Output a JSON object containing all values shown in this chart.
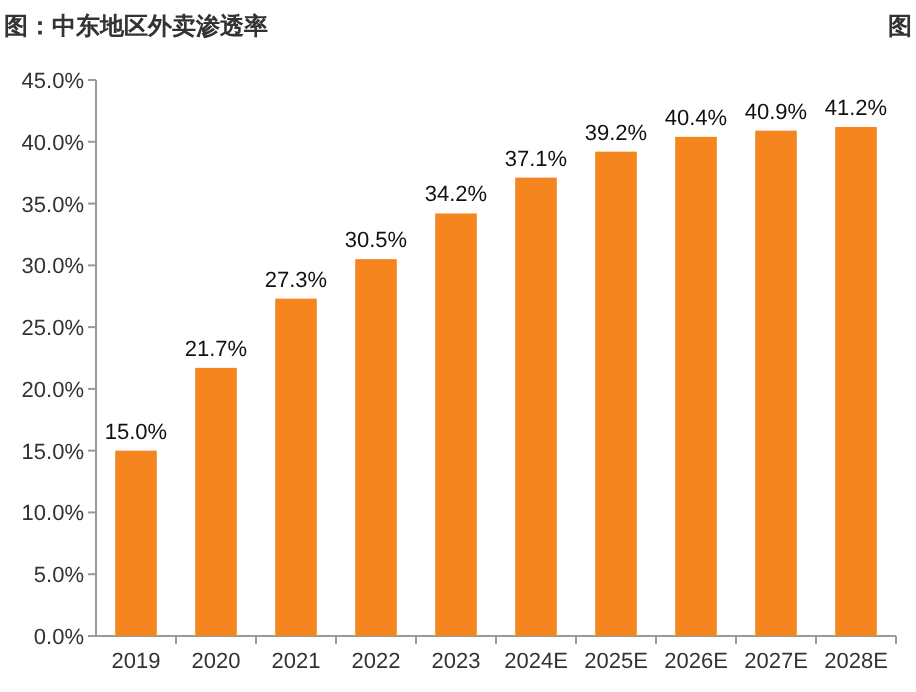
{
  "chart_data": {
    "type": "bar",
    "title": "图：中东地区外卖渗透率",
    "annotations": [
      "图"
    ],
    "categories": [
      "2019",
      "2020",
      "2021",
      "2022",
      "2023",
      "2024E",
      "2025E",
      "2026E",
      "2027E",
      "2028E"
    ],
    "values": [
      15.0,
      21.7,
      27.3,
      30.5,
      34.2,
      37.1,
      39.2,
      40.4,
      40.9,
      41.2
    ],
    "value_labels": [
      "15.0%",
      "21.7%",
      "27.3%",
      "30.5%",
      "34.2%",
      "37.1%",
      "39.2%",
      "40.4%",
      "40.9%",
      "41.2%"
    ],
    "color": "#f5861f",
    "ylim": [
      0,
      45
    ],
    "yticks": [
      {
        "value": 0,
        "label": "0.0%"
      },
      {
        "value": 5,
        "label": "5.0%"
      },
      {
        "value": 10,
        "label": "10.0%"
      },
      {
        "value": 15,
        "label": "15.0%"
      },
      {
        "value": 20,
        "label": "20.0%"
      },
      {
        "value": 25,
        "label": "25.0%"
      },
      {
        "value": 30,
        "label": "30.0%"
      },
      {
        "value": 35,
        "label": "35.0%"
      },
      {
        "value": 40,
        "label": "40.0%"
      },
      {
        "value": 45,
        "label": "45.0%"
      }
    ],
    "grid": false
  }
}
